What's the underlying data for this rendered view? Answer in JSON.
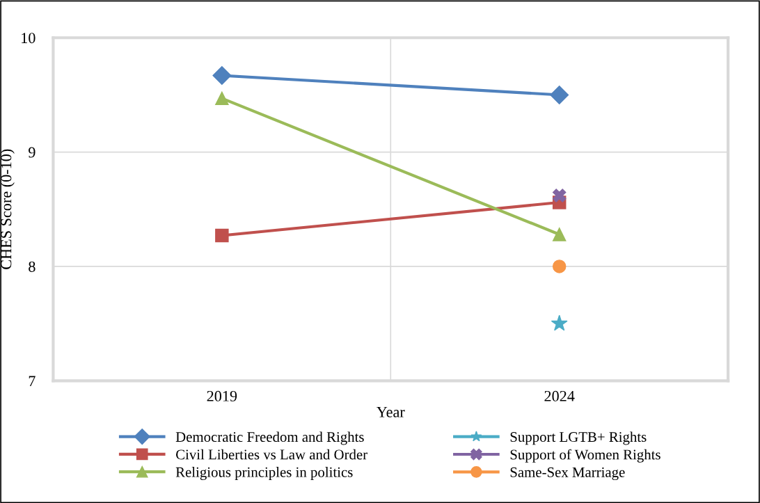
{
  "chart_data": {
    "type": "line",
    "xlabel": "Year",
    "ylabel": "CHES Score (0-10)",
    "categories": [
      "2019",
      "2024"
    ],
    "ylim": [
      7,
      10
    ],
    "yticks": [
      7,
      8,
      9,
      10
    ],
    "grid": true,
    "legend": "bottom",
    "series": [
      {
        "name": "Democratic Freedom and Rights",
        "color": "#4f81bd",
        "marker": "diamond",
        "values": [
          9.67,
          9.5
        ]
      },
      {
        "name": "Civil Liberties vs Law and Order",
        "color": "#c0504d",
        "marker": "square",
        "values": [
          8.27,
          8.56
        ]
      },
      {
        "name": "Religious principles in politics",
        "color": "#9bbb59",
        "marker": "triangle",
        "values": [
          9.47,
          8.28
        ]
      },
      {
        "name": "Support LGTB+ Rights",
        "color": "#4bacc6",
        "marker": "star",
        "values": [
          null,
          7.5
        ]
      },
      {
        "name": "Support of Women Rights",
        "color": "#8064a2",
        "marker": "cross",
        "values": [
          null,
          8.62
        ]
      },
      {
        "name": "Same-Sex Marriage",
        "color": "#f79646",
        "marker": "circle",
        "values": [
          null,
          8.0
        ]
      }
    ]
  }
}
